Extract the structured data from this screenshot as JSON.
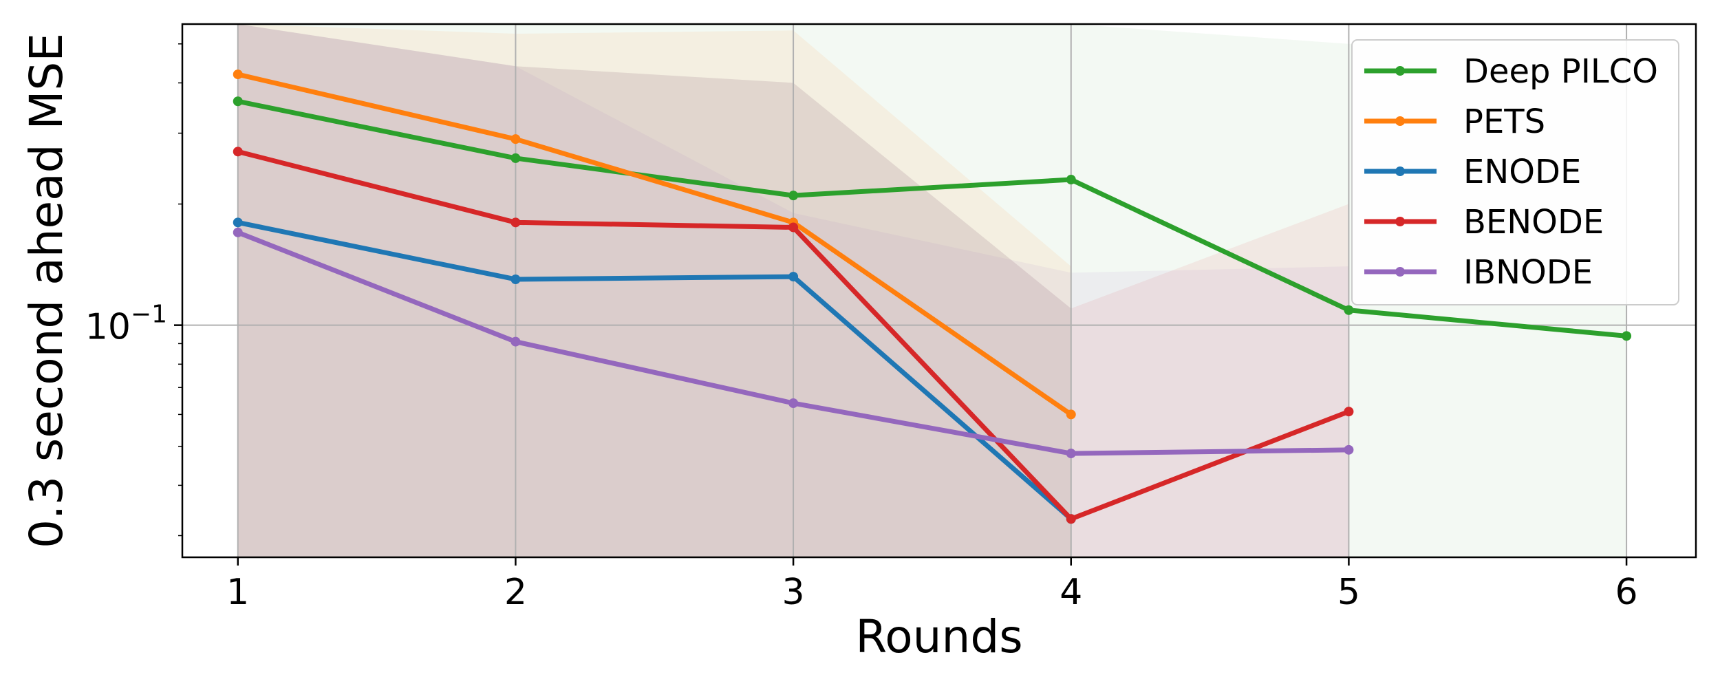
{
  "chart_data": {
    "type": "line",
    "title": "",
    "xlabel": "Rounds",
    "ylabel": "0.3 second ahead MSE",
    "yscale": "log",
    "xlim": [
      0.8,
      6.25
    ],
    "ylim": [
      0.0265,
      0.56
    ],
    "x_ticks": [
      "1",
      "2",
      "3",
      "4",
      "5",
      "6"
    ],
    "y_tick_label": {
      "value": 0.1,
      "base": "10",
      "exponent": "−1"
    },
    "grid": true,
    "legend_position": "top-right",
    "series": [
      {
        "name": "Deep PILCO",
        "color": "#2ca02c",
        "x": [
          1,
          2,
          3,
          4,
          5,
          6
        ],
        "values": [
          0.36,
          0.26,
          0.21,
          0.23,
          0.109,
          0.094
        ],
        "band_upper": [
          0.56,
          0.56,
          0.56,
          0.56,
          0.5,
          0.5
        ],
        "band_lower": [
          0.0265,
          0.0265,
          0.0265,
          0.0265,
          0.0265,
          0.0265
        ]
      },
      {
        "name": "PETS",
        "color": "#ff7f0e",
        "x": [
          1,
          2,
          3,
          4
        ],
        "values": [
          0.42,
          0.29,
          0.18,
          0.06
        ],
        "band_upper": [
          0.56,
          0.53,
          0.54,
          0.14
        ],
        "band_lower": [
          0.0265,
          0.0265,
          0.0265,
          0.0265
        ]
      },
      {
        "name": "ENODE",
        "color": "#1f77b4",
        "x": [
          1,
          2,
          3,
          4
        ],
        "values": [
          0.18,
          0.13,
          0.132,
          0.033
        ],
        "band_upper": [
          0.56,
          0.44,
          0.4,
          0.11
        ],
        "band_lower": [
          0.0265,
          0.0265,
          0.0265,
          0.0265
        ]
      },
      {
        "name": "BENODE",
        "color": "#d62728",
        "x": [
          1,
          2,
          3,
          4,
          5
        ],
        "values": [
          0.27,
          0.18,
          0.175,
          0.033,
          0.061
        ],
        "band_upper": [
          0.56,
          0.44,
          0.4,
          0.11,
          0.2
        ],
        "band_lower": [
          0.0265,
          0.0265,
          0.0265,
          0.0265,
          0.0265
        ]
      },
      {
        "name": "IBNODE",
        "color": "#9467bd",
        "x": [
          1,
          2,
          3,
          4,
          5
        ],
        "values": [
          0.17,
          0.091,
          0.064,
          0.048,
          0.049
        ],
        "band_upper": [
          0.56,
          0.44,
          0.19,
          0.135,
          0.14
        ],
        "band_lower": [
          0.0265,
          0.0265,
          0.0265,
          0.0265,
          0.0265
        ]
      }
    ]
  }
}
